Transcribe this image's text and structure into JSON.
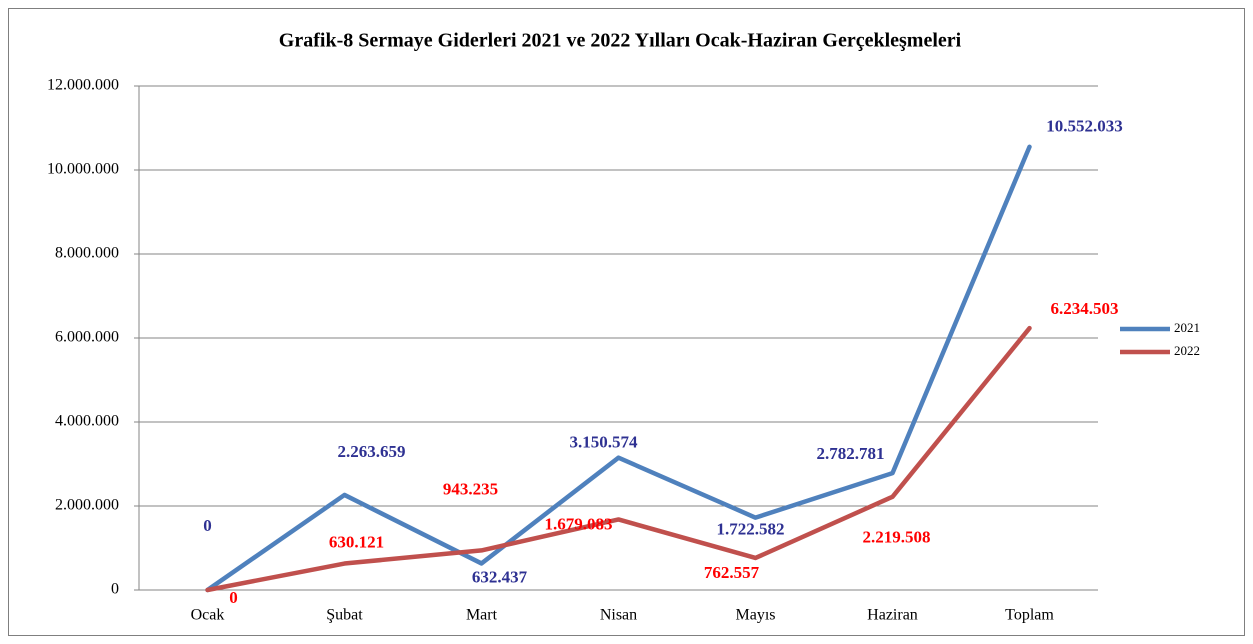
{
  "chart_data": {
    "type": "line",
    "title": "Grafik-8  Sermaye Giderleri 2021 ve 2022 Yılları Ocak-Haziran Gerçekleşmeleri",
    "categories": [
      "Ocak",
      "Şubat",
      "Mart",
      "Nisan",
      "Mayıs",
      "Haziran",
      "Toplam"
    ],
    "series": [
      {
        "name": "2021",
        "color": "#4f81bd",
        "label_color": "#2e3192",
        "values": [
          0,
          2263659,
          632437,
          3150574,
          1722582,
          2782781,
          10552033
        ],
        "value_labels": [
          "0",
          "2.263.659",
          "632.437",
          "3.150.574",
          "1.722.582",
          "2.782.781",
          "10.552.033"
        ]
      },
      {
        "name": "2022",
        "color": "#c0504d",
        "label_color": "#ff0000",
        "values": [
          0,
          630121,
          943235,
          1679083,
          762557,
          2219508,
          6234503
        ],
        "value_labels": [
          "0",
          "630.121",
          "943.235",
          "1.679.083",
          "762.557",
          "2.219.508",
          "6.234.503"
        ]
      }
    ],
    "ylim": [
      0,
      12000000
    ],
    "yticks": [
      0,
      {
        "value": 2000000,
        "label": "2.000.000"
      },
      {
        "value": 4000000,
        "label": "4.000.000"
      },
      {
        "value": 6000000,
        "label": "6.000.000"
      },
      {
        "value": 8000000,
        "label": "8.000.000"
      },
      {
        "value": 10000000,
        "label": "10.000.000"
      },
      {
        "value": 12000000,
        "label": "12.000.000"
      }
    ],
    "grid": true,
    "legend": "right"
  }
}
